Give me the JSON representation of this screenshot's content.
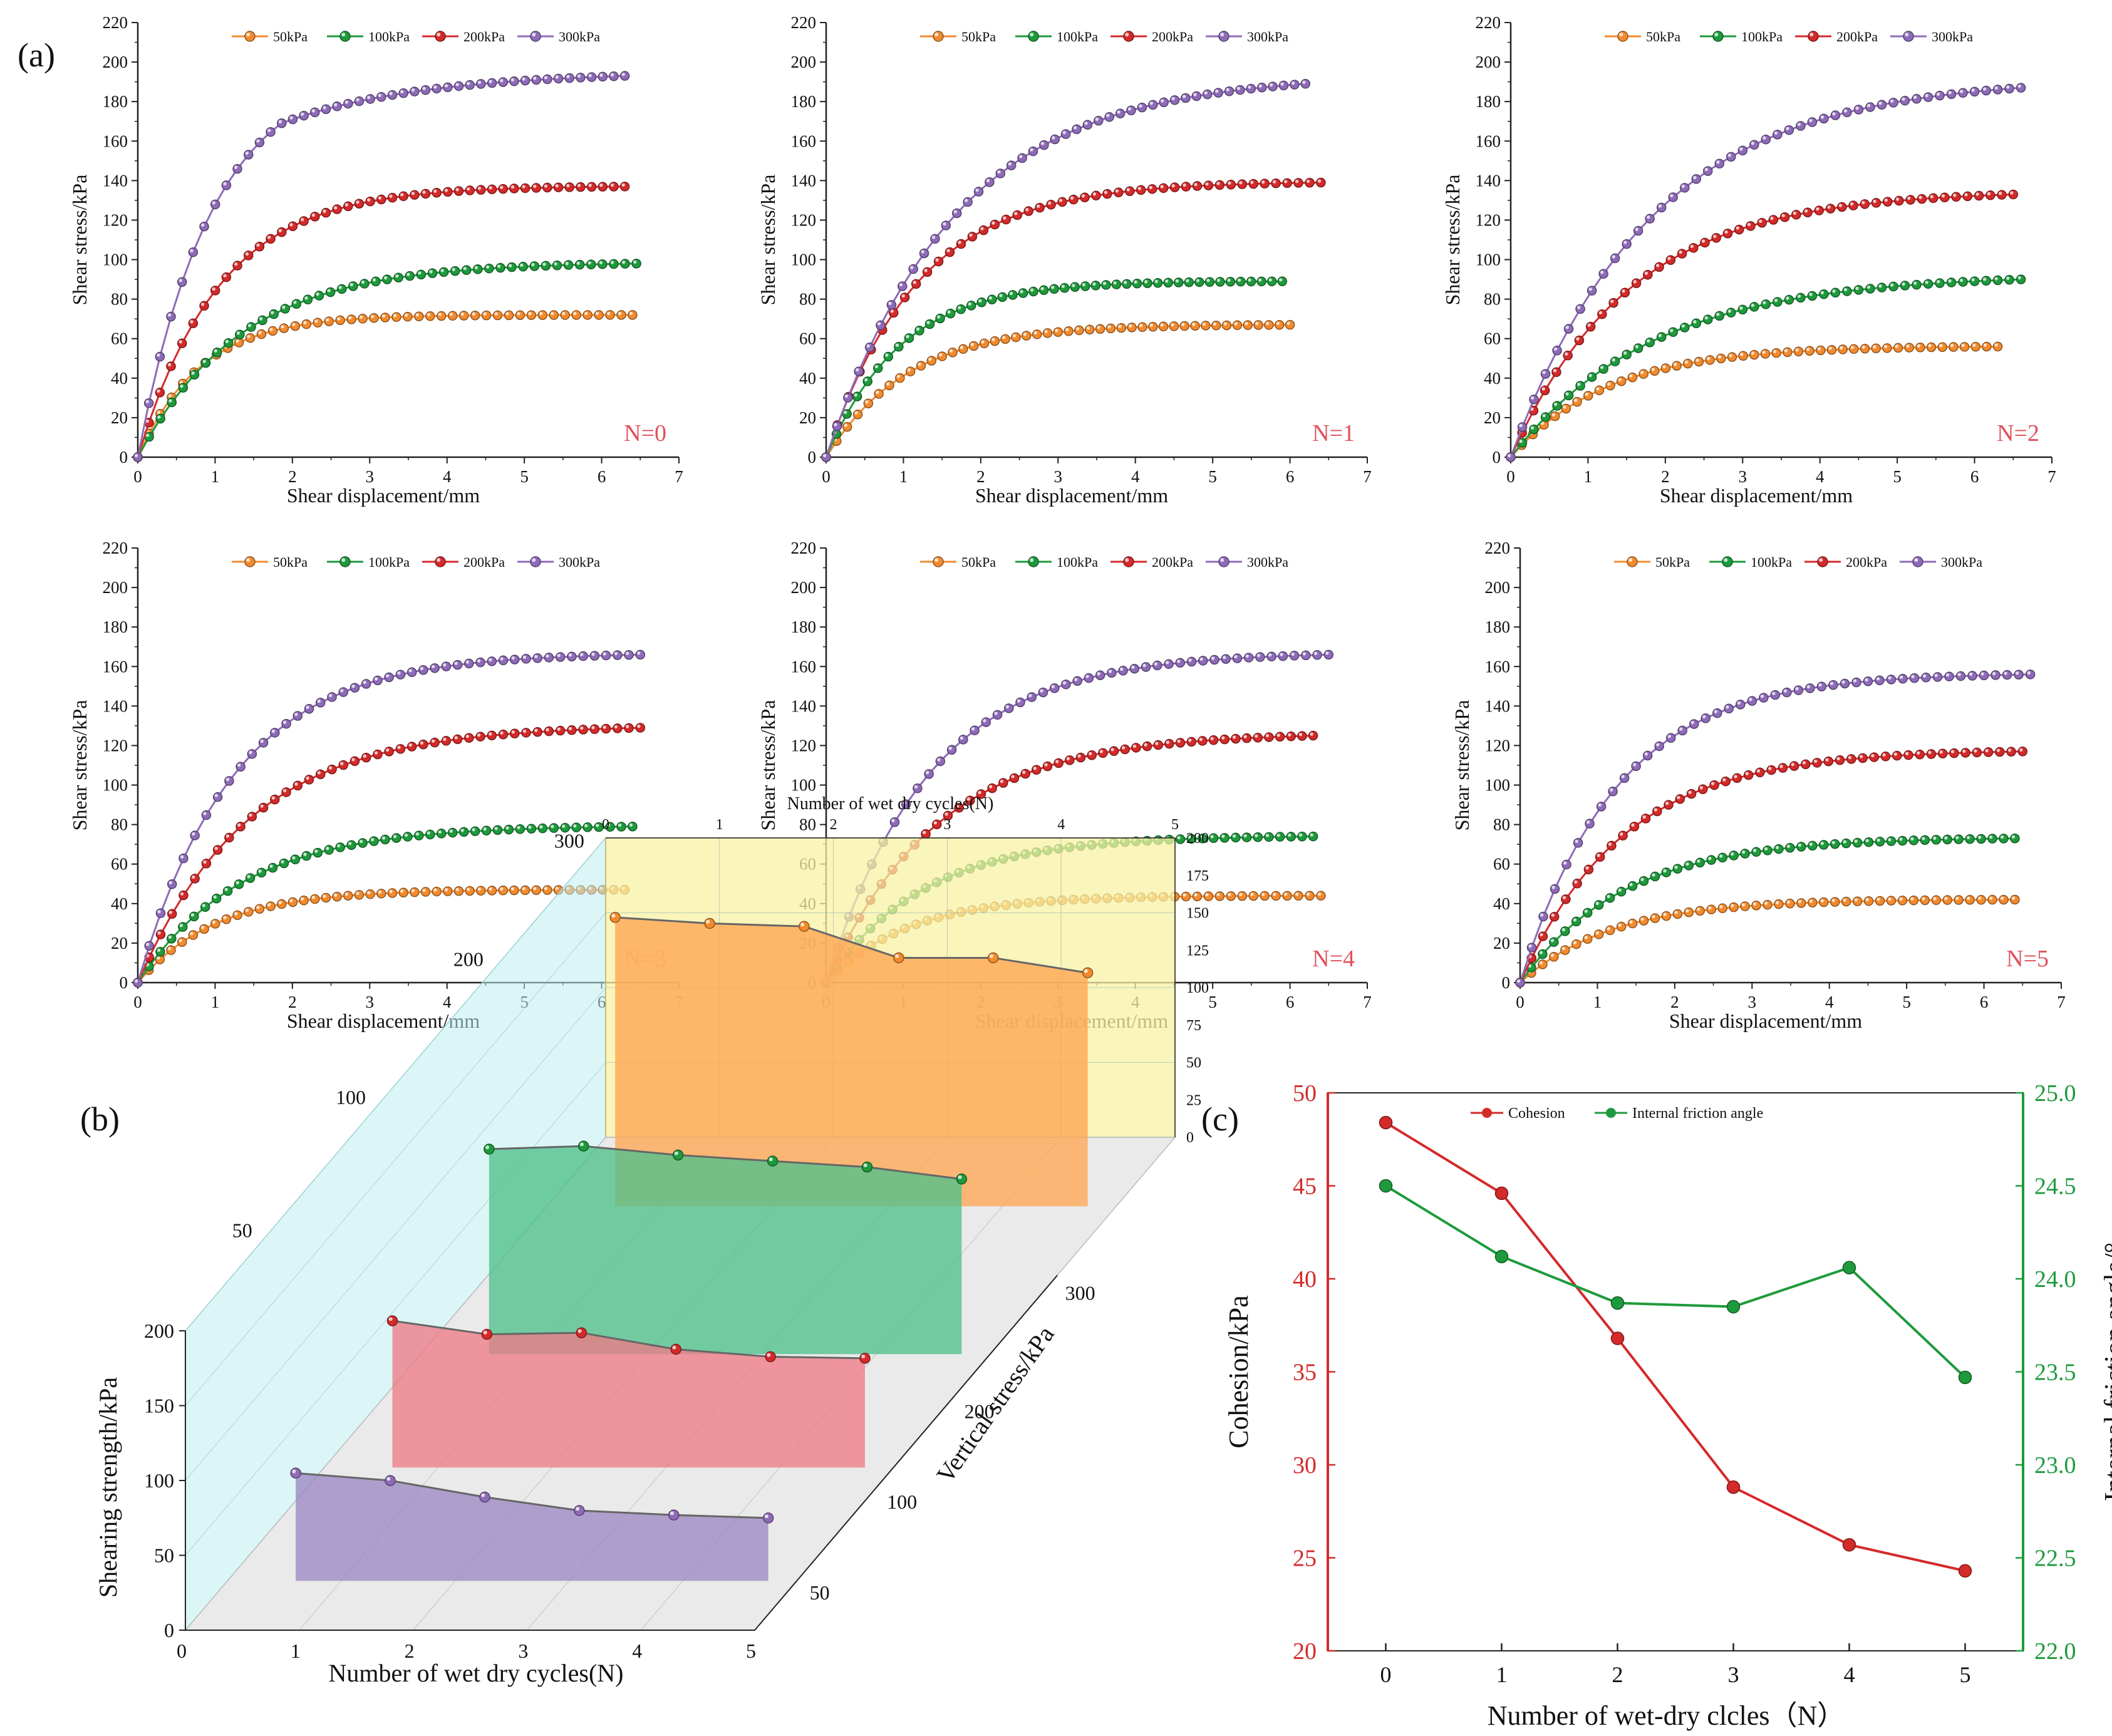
{
  "figure": {
    "label_a": "(a)",
    "label_b": "(b)",
    "label_c": "(c)"
  },
  "colors": {
    "50kPa": "#f28a2e",
    "100kPa": "#1e9a3c",
    "200kPa": "#d42a2a",
    "300kPa": "#8e6bb8",
    "cohesion": "#d42a2a",
    "friction": "#1e9a3c",
    "n_label": "#e0505a"
  },
  "chart_data": [
    {
      "type": "line",
      "panel": "a",
      "cycle_label": "N=0",
      "xlabel": "Shear displacement/mm",
      "ylabel": "Shear stress/kPa",
      "xlim": [
        0,
        7
      ],
      "ylim": [
        0,
        220
      ],
      "xticks": [
        "0",
        "1",
        "2",
        "3",
        "4",
        "5",
        "6",
        "7"
      ],
      "yticks": [
        "0",
        "20",
        "40",
        "60",
        "80",
        "100",
        "120",
        "140",
        "160",
        "180",
        "200",
        "220"
      ],
      "series": [
        {
          "name": "50kPa",
          "xend": 6.4,
          "peak": 72,
          "k": 1.25,
          "shape": "exp"
        },
        {
          "name": "100kPa",
          "xend": 6.45,
          "peak": 98,
          "k": 0.75,
          "shape": "exp"
        },
        {
          "name": "200kPa",
          "xend": 6.3,
          "peak": 137,
          "k": 0.95,
          "shape": "exp"
        },
        {
          "name": "300kPa",
          "xend": 6.3,
          "peak": 193,
          "k": 1.1,
          "shape": "kink"
        }
      ]
    },
    {
      "type": "line",
      "panel": "a",
      "cycle_label": "N=1",
      "xlabel": "Shear displacement/mm",
      "ylabel": "Shear stress/kPa",
      "xlim": [
        0,
        7
      ],
      "ylim": [
        0,
        220
      ],
      "xticks": [
        "0",
        "1",
        "2",
        "3",
        "4",
        "5",
        "6",
        "7"
      ],
      "yticks": [
        "0",
        "20",
        "40",
        "60",
        "80",
        "100",
        "120",
        "140",
        "160",
        "180",
        "200",
        "220"
      ],
      "series": [
        {
          "name": "50kPa",
          "xend": 6.0,
          "peak": 67,
          "k": 0.95,
          "shape": "exp"
        },
        {
          "name": "100kPa",
          "xend": 5.9,
          "peak": 89,
          "k": 1.05,
          "shape": "exp"
        },
        {
          "name": "200kPa",
          "xend": 6.4,
          "peak": 139,
          "k": 0.85,
          "shape": "exp"
        },
        {
          "name": "300kPa",
          "xend": 6.2,
          "peak": 189,
          "k": 0.6,
          "shape": "exp"
        }
      ]
    },
    {
      "type": "line",
      "panel": "a",
      "cycle_label": "N=2",
      "xlabel": "Shear displacement/mm",
      "ylabel": "Shear stress/kPa",
      "xlim": [
        0,
        7
      ],
      "ylim": [
        0,
        220
      ],
      "xticks": [
        "0",
        "1",
        "2",
        "3",
        "4",
        "5",
        "6",
        "7"
      ],
      "yticks": [
        "0",
        "20",
        "40",
        "60",
        "80",
        "100",
        "120",
        "140",
        "160",
        "180",
        "200",
        "220"
      ],
      "series": [
        {
          "name": "50kPa",
          "xend": 6.3,
          "peak": 56,
          "k": 0.8,
          "shape": "exp"
        },
        {
          "name": "100kPa",
          "xend": 6.6,
          "peak": 90,
          "k": 0.55,
          "shape": "exp"
        },
        {
          "name": "200kPa",
          "xend": 6.5,
          "peak": 133,
          "k": 0.65,
          "shape": "exp"
        },
        {
          "name": "300kPa",
          "xend": 6.6,
          "peak": 187,
          "k": 0.55,
          "shape": "exp"
        }
      ]
    },
    {
      "type": "line",
      "panel": "a",
      "cycle_label": "N=3",
      "xlabel": "Shear displacement/mm",
      "ylabel": "Shear stress/kPa",
      "xlim": [
        0,
        7
      ],
      "ylim": [
        0,
        220
      ],
      "xticks": [
        "0",
        "1",
        "2",
        "3",
        "4",
        "5",
        "6",
        "7"
      ],
      "yticks": [
        "0",
        "20",
        "40",
        "60",
        "80",
        "100",
        "120",
        "140",
        "160",
        "180",
        "200",
        "220"
      ],
      "series": [
        {
          "name": "50kPa",
          "xend": 6.3,
          "peak": 47,
          "k": 1.0,
          "shape": "exp"
        },
        {
          "name": "100kPa",
          "xend": 6.4,
          "peak": 79,
          "k": 0.75,
          "shape": "exp"
        },
        {
          "name": "200kPa",
          "xend": 6.5,
          "peak": 129,
          "k": 0.7,
          "shape": "exp"
        },
        {
          "name": "300kPa",
          "xend": 6.5,
          "peak": 166,
          "k": 0.8,
          "shape": "exp"
        }
      ]
    },
    {
      "type": "line",
      "panel": "a",
      "cycle_label": "N=4",
      "xlabel": "Shear displacement/mm",
      "ylabel": "Shear stress/kPa",
      "xlim": [
        0,
        7
      ],
      "ylim": [
        0,
        220
      ],
      "xticks": [
        "0",
        "1",
        "2",
        "3",
        "4",
        "5",
        "6",
        "7"
      ],
      "yticks": [
        "0",
        "20",
        "40",
        "60",
        "80",
        "100",
        "120",
        "140",
        "160",
        "180",
        "200",
        "220"
      ],
      "series": [
        {
          "name": "50kPa",
          "xend": 6.4,
          "peak": 44,
          "k": 0.95,
          "shape": "exp"
        },
        {
          "name": "100kPa",
          "xend": 6.3,
          "peak": 74,
          "k": 0.8,
          "shape": "exp"
        },
        {
          "name": "200kPa",
          "xend": 6.3,
          "peak": 125,
          "k": 0.7,
          "shape": "exp"
        },
        {
          "name": "300kPa",
          "xend": 6.5,
          "peak": 166,
          "k": 0.75,
          "shape": "exp"
        }
      ]
    },
    {
      "type": "line",
      "panel": "a",
      "cycle_label": "N=5",
      "xlabel": "Shear displacement/mm",
      "ylabel": "Shear stress/kPa",
      "xlim": [
        0,
        7
      ],
      "ylim": [
        0,
        220
      ],
      "xticks": [
        "0",
        "1",
        "2",
        "3",
        "4",
        "5",
        "6",
        "7"
      ],
      "yticks": [
        "0",
        "20",
        "40",
        "60",
        "80",
        "100",
        "120",
        "140",
        "160",
        "180",
        "200",
        "220"
      ],
      "series": [
        {
          "name": "50kPa",
          "xend": 6.4,
          "peak": 42,
          "k": 0.85,
          "shape": "exp"
        },
        {
          "name": "100kPa",
          "xend": 6.4,
          "peak": 73,
          "k": 0.75,
          "shape": "exp"
        },
        {
          "name": "200kPa",
          "xend": 6.5,
          "peak": 117,
          "k": 0.75,
          "shape": "exp"
        },
        {
          "name": "300kPa",
          "xend": 6.6,
          "peak": 156,
          "k": 0.8,
          "shape": "exp"
        }
      ]
    },
    {
      "type": "area3d",
      "panel": "b",
      "xlabel": "Number of wet dry cycles(N)",
      "top_xlabel": "Number of wet dry cycles(N)",
      "ylabel": "Shearing strength/kPa",
      "zlabel": "Vertical stress/kPa",
      "xticks": [
        "0",
        "1",
        "2",
        "3",
        "4",
        "5"
      ],
      "yticks": [
        "0",
        "50",
        "100",
        "150",
        "200"
      ],
      "zticks": [
        "50",
        "100",
        "200",
        "300"
      ],
      "cycles": [
        0,
        1,
        2,
        3,
        4,
        5
      ],
      "series": [
        {
          "name": "50kPa",
          "values": [
            72,
            67,
            56,
            47,
            44,
            42
          ]
        },
        {
          "name": "100kPa",
          "values": [
            98,
            89,
            90,
            79,
            74,
            73
          ]
        },
        {
          "name": "200kPa",
          "values": [
            137,
            139,
            133,
            129,
            125,
            117
          ]
        },
        {
          "name": "300kPa",
          "values": [
            193,
            189,
            187,
            166,
            166,
            156
          ]
        }
      ]
    },
    {
      "type": "line",
      "panel": "c",
      "xlabel": "Number of wet-dry clcles（N）",
      "ylabel": "Cohesion/kPa",
      "y2label": "Internal friction angle/°",
      "x": [
        0,
        1,
        2,
        3,
        4,
        5
      ],
      "xticks": [
        "0",
        "1",
        "2",
        "3",
        "4",
        "5"
      ],
      "yticks": [
        "20",
        "25",
        "30",
        "35",
        "40",
        "45",
        "50"
      ],
      "y2ticks": [
        "22.0",
        "22.5",
        "23.0",
        "23.5",
        "24.0",
        "24.5",
        "25.0"
      ],
      "ylim": [
        20,
        50
      ],
      "y2lim": [
        22,
        25
      ],
      "series": [
        {
          "name": "Cohesion",
          "axis": "left",
          "values": [
            48.4,
            44.6,
            36.8,
            28.8,
            25.7,
            24.3
          ]
        },
        {
          "name": "Internal friction angle",
          "axis": "right",
          "values": [
            24.5,
            24.12,
            23.87,
            23.85,
            24.06,
            23.47
          ]
        }
      ]
    }
  ]
}
